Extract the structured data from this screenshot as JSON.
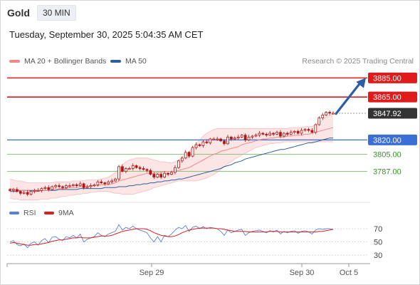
{
  "header": {
    "asset": "Gold",
    "timeframe": "30 MIN",
    "timestamp": "Tuesday, September 30, 2025 5:04:35 AM CET"
  },
  "legend": {
    "bollinger_label": "MA 20 + Bollinger Bands",
    "ma50_label": "MA 50",
    "credit": "Research © 2025 Trading Central",
    "bollinger_color": "#f08a8a",
    "ma50_color": "#2f5f9e"
  },
  "rsi_legend": {
    "rsi_label": "RSI",
    "ma_label": "9MA",
    "rsi_color": "#5b7fd6",
    "ma_color": "#d92020"
  },
  "colors": {
    "resistance": "#e01b1b",
    "support": "#3a6fd8",
    "minor_support": "#7cbf6a",
    "last_price": "#333333",
    "arrow": "#2c5ea8",
    "candle": "#b01717",
    "band_fill": "#fbdcdc"
  },
  "chart_data": {
    "type": "candlestick",
    "y_range": [
      3765,
      3895
    ],
    "levels": [
      {
        "label": "3885.00",
        "value": 3885.0,
        "kind": "resistance"
      },
      {
        "label": "3865.00",
        "value": 3865.0,
        "kind": "resistance"
      },
      {
        "label": "3847.92",
        "value": 3847.92,
        "kind": "last_price"
      },
      {
        "label": "3820.00",
        "value": 3820.0,
        "kind": "pivot"
      },
      {
        "label": "3805.00",
        "value": 3805.0,
        "kind": "support"
      },
      {
        "label": "3787.00",
        "value": 3787.0,
        "kind": "support"
      }
    ],
    "x_ticks": [
      "Sep 29",
      "Sep 30",
      "Oct 5"
    ],
    "arrow": {
      "direction": "up",
      "from_price": 3847.5,
      "to_price": 3885
    },
    "close": [
      3767,
      3768,
      3766,
      3764,
      3765,
      3763,
      3766,
      3767,
      3767,
      3769,
      3770,
      3768,
      3771,
      3772,
      3771,
      3770,
      3772,
      3772,
      3773,
      3772,
      3774,
      3770,
      3771,
      3772,
      3773,
      3776,
      3775,
      3774,
      3776,
      3777,
      3779,
      3792,
      3787,
      3790,
      3790,
      3793,
      3791,
      3790,
      3789,
      3788,
      3784,
      3781,
      3784,
      3781,
      3785,
      3784,
      3786,
      3791,
      3798,
      3801,
      3807,
      3803,
      3812,
      3815,
      3814,
      3818,
      3817,
      3821,
      3821,
      3821,
      3819,
      3816,
      3823,
      3821,
      3822,
      3823,
      3825,
      3820,
      3823,
      3824,
      3825,
      3827,
      3826,
      3825,
      3827,
      3826,
      3828,
      3824,
      3827,
      3826,
      3828,
      3829,
      3827,
      3830,
      3831,
      3830,
      3828,
      3836,
      3843,
      3846,
      3849,
      3848,
      3848
    ],
    "ma20": [
      3769,
      3768,
      3768,
      3767,
      3767,
      3767,
      3766,
      3766,
      3766,
      3767,
      3767,
      3767,
      3768,
      3768,
      3769,
      3769,
      3769,
      3770,
      3770,
      3770,
      3771,
      3771,
      3771,
      3772,
      3772,
      3772,
      3773,
      3773,
      3773,
      3774,
      3775,
      3777,
      3778,
      3779,
      3780,
      3781,
      3782,
      3783,
      3784,
      3785,
      3785,
      3785,
      3786,
      3786,
      3787,
      3787,
      3787,
      3787,
      3788,
      3789,
      3790,
      3791,
      3793,
      3795,
      3797,
      3799,
      3801,
      3803,
      3805,
      3806,
      3808,
      3809,
      3810,
      3811,
      3812,
      3813,
      3815,
      3816,
      3817,
      3818,
      3819,
      3820,
      3821,
      3821,
      3822,
      3822,
      3823,
      3823,
      3823,
      3824,
      3824,
      3825,
      3825,
      3825,
      3826,
      3826,
      3827,
      3828,
      3829,
      3830,
      3831,
      3832,
      3833
    ],
    "ma50": [
      3766,
      3766,
      3766,
      3767,
      3767,
      3767,
      3767,
      3767,
      3767,
      3767,
      3767,
      3767,
      3767,
      3767,
      3768,
      3768,
      3768,
      3768,
      3768,
      3768,
      3769,
      3769,
      3769,
      3769,
      3769,
      3769,
      3769,
      3770,
      3770,
      3770,
      3770,
      3771,
      3771,
      3771,
      3772,
      3772,
      3773,
      3773,
      3774,
      3774,
      3775,
      3775,
      3776,
      3776,
      3777,
      3777,
      3778,
      3778,
      3779,
      3779,
      3780,
      3781,
      3782,
      3783,
      3784,
      3785,
      3786,
      3787,
      3788,
      3789,
      3790,
      3792,
      3793,
      3794,
      3796,
      3797,
      3798,
      3800,
      3801,
      3802,
      3803,
      3804,
      3805,
      3806,
      3807,
      3808,
      3809,
      3810,
      3810,
      3811,
      3812,
      3813,
      3814,
      3815,
      3816,
      3817,
      3817,
      3818,
      3819,
      3820,
      3821,
      3822,
      3822
    ],
    "bb_upper": [
      3779,
      3778,
      3777,
      3777,
      3776,
      3775,
      3775,
      3775,
      3775,
      3775,
      3775,
      3775,
      3775,
      3776,
      3776,
      3776,
      3776,
      3776,
      3777,
      3777,
      3777,
      3777,
      3778,
      3778,
      3778,
      3778,
      3779,
      3780,
      3781,
      3783,
      3786,
      3790,
      3794,
      3797,
      3799,
      3800,
      3801,
      3801,
      3801,
      3801,
      3800,
      3799,
      3798,
      3797,
      3797,
      3796,
      3796,
      3797,
      3799,
      3802,
      3805,
      3808,
      3812,
      3816,
      3820,
      3824,
      3827,
      3829,
      3831,
      3832,
      3832,
      3832,
      3832,
      3832,
      3832,
      3832,
      3832,
      3832,
      3832,
      3832,
      3832,
      3832,
      3832,
      3832,
      3832,
      3832,
      3832,
      3832,
      3832,
      3832,
      3833,
      3833,
      3833,
      3833,
      3834,
      3834,
      3834,
      3836,
      3838,
      3841,
      3844,
      3846,
      3847
    ],
    "bb_lower": [
      3759,
      3758,
      3758,
      3757,
      3757,
      3757,
      3757,
      3757,
      3757,
      3758,
      3758,
      3758,
      3759,
      3759,
      3760,
      3761,
      3761,
      3762,
      3762,
      3763,
      3763,
      3764,
      3764,
      3765,
      3765,
      3766,
      3766,
      3766,
      3766,
      3765,
      3764,
      3764,
      3763,
      3763,
      3763,
      3763,
      3764,
      3765,
      3766,
      3767,
      3768,
      3770,
      3771,
      3772,
      3773,
      3774,
      3775,
      3776,
      3777,
      3777,
      3777,
      3777,
      3777,
      3777,
      3778,
      3779,
      3780,
      3782,
      3784,
      3786,
      3789,
      3792,
      3795,
      3797,
      3800,
      3802,
      3804,
      3806,
      3808,
      3810,
      3812,
      3813,
      3814,
      3815,
      3816,
      3816,
      3817,
      3817,
      3818,
      3818,
      3818,
      3818,
      3818,
      3818,
      3818,
      3818,
      3818,
      3818,
      3818,
      3818,
      3818,
      3818,
      3818
    ],
    "rsi": {
      "y_range": [
        25,
        80
      ],
      "ticks": [
        70,
        50,
        30
      ],
      "values": [
        50,
        52,
        46,
        44,
        47,
        41,
        48,
        50,
        45,
        52,
        55,
        49,
        57,
        58,
        54,
        52,
        58,
        56,
        60,
        56,
        62,
        50,
        54,
        56,
        58,
        64,
        60,
        58,
        62,
        64,
        66,
        76,
        68,
        72,
        70,
        74,
        70,
        68,
        66,
        64,
        56,
        50,
        58,
        50,
        60,
        58,
        62,
        68,
        72,
        70,
        75,
        66,
        72,
        74,
        70,
        73,
        70,
        72,
        71,
        70,
        66,
        60,
        68,
        64,
        66,
        68,
        69,
        60,
        64,
        66,
        67,
        68,
        66,
        64,
        67,
        65,
        68,
        62,
        66,
        64,
        66,
        67,
        63,
        66,
        67,
        65,
        62,
        68,
        70,
        69,
        70,
        70,
        69
      ],
      "ma9": [
        48,
        49,
        48,
        47,
        46,
        45,
        45,
        46,
        46,
        47,
        48,
        49,
        51,
        52,
        53,
        53,
        54,
        55,
        56,
        56,
        57,
        56,
        56,
        56,
        57,
        58,
        59,
        59,
        59,
        60,
        62,
        64,
        66,
        67,
        68,
        69,
        70,
        70,
        70,
        69,
        67,
        64,
        62,
        60,
        59,
        58,
        58,
        59,
        61,
        64,
        66,
        68,
        69,
        70,
        71,
        71,
        71,
        71,
        71,
        70,
        70,
        69,
        68,
        67,
        66,
        66,
        66,
        66,
        65,
        65,
        65,
        65,
        65,
        65,
        66,
        66,
        66,
        65,
        65,
        65,
        65,
        65,
        65,
        65,
        65,
        65,
        65,
        65,
        66,
        66,
        67,
        68,
        69
      ]
    }
  }
}
